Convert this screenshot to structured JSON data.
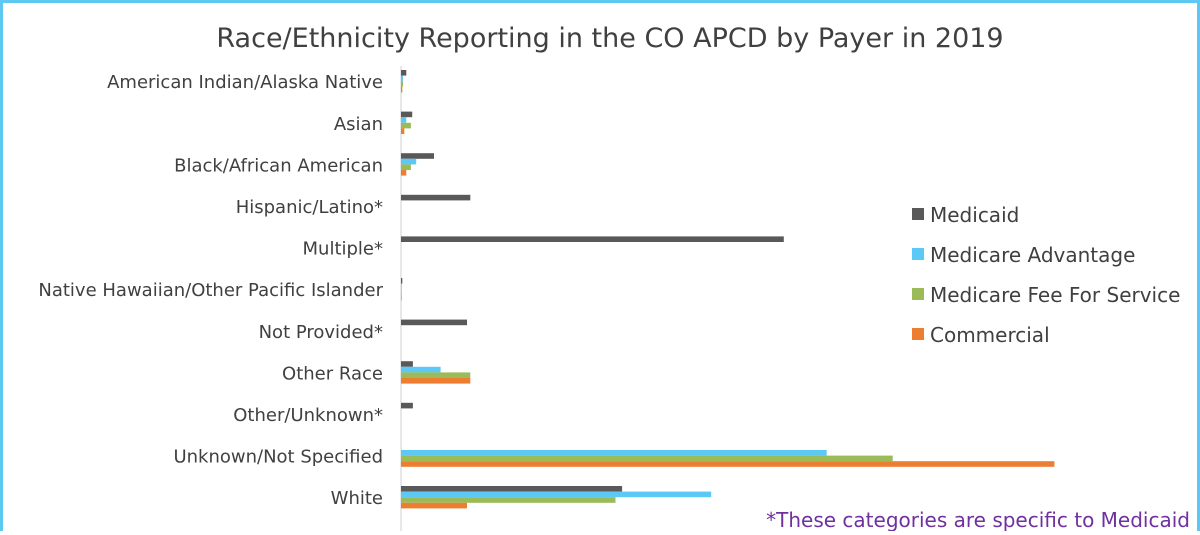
{
  "chart_data": {
    "type": "bar",
    "orientation": "horizontal",
    "title": "Race/Ethnicity Reporting in the CO APCD by Payer in 2019",
    "categories": [
      "American Indian/Alaska Native",
      "Asian",
      "Black/African American",
      "Hispanic/Latino*",
      "Multiple*",
      "Native Hawaiian/Other Pacific Islander",
      "Not Provided*",
      "Other Race",
      "Other/Unknown*",
      "Unknown/Not Specified",
      "White"
    ],
    "series": [
      {
        "name": "Medicaid",
        "color": "#595959",
        "values": [
          0.8,
          1.7,
          5.0,
          10.5,
          58.0,
          0.2,
          10.0,
          1.8,
          1.8,
          0,
          33.5
        ]
      },
      {
        "name": "Medicare Advantage",
        "color": "#5bc8f5",
        "values": [
          0.3,
          0.8,
          2.3,
          0,
          0,
          0.1,
          0,
          6.0,
          0,
          64.5,
          47.0
        ]
      },
      {
        "name": "Medicare Fee For Service",
        "color": "#9bbb59",
        "values": [
          0.3,
          1.5,
          1.5,
          0,
          0,
          0.1,
          0,
          10.5,
          0,
          74.5,
          32.5
        ]
      },
      {
        "name": "Commercial",
        "color": "#ed7d31",
        "values": [
          0.2,
          0.5,
          0.8,
          0,
          0,
          0.1,
          0,
          10.5,
          0,
          99.0,
          10.0
        ]
      }
    ],
    "xlim": [
      0,
      100
    ],
    "grid": false,
    "legend_position": "right",
    "footnote": "*These categories are specific to Medicaid",
    "footnote_color": "#7030a0"
  }
}
